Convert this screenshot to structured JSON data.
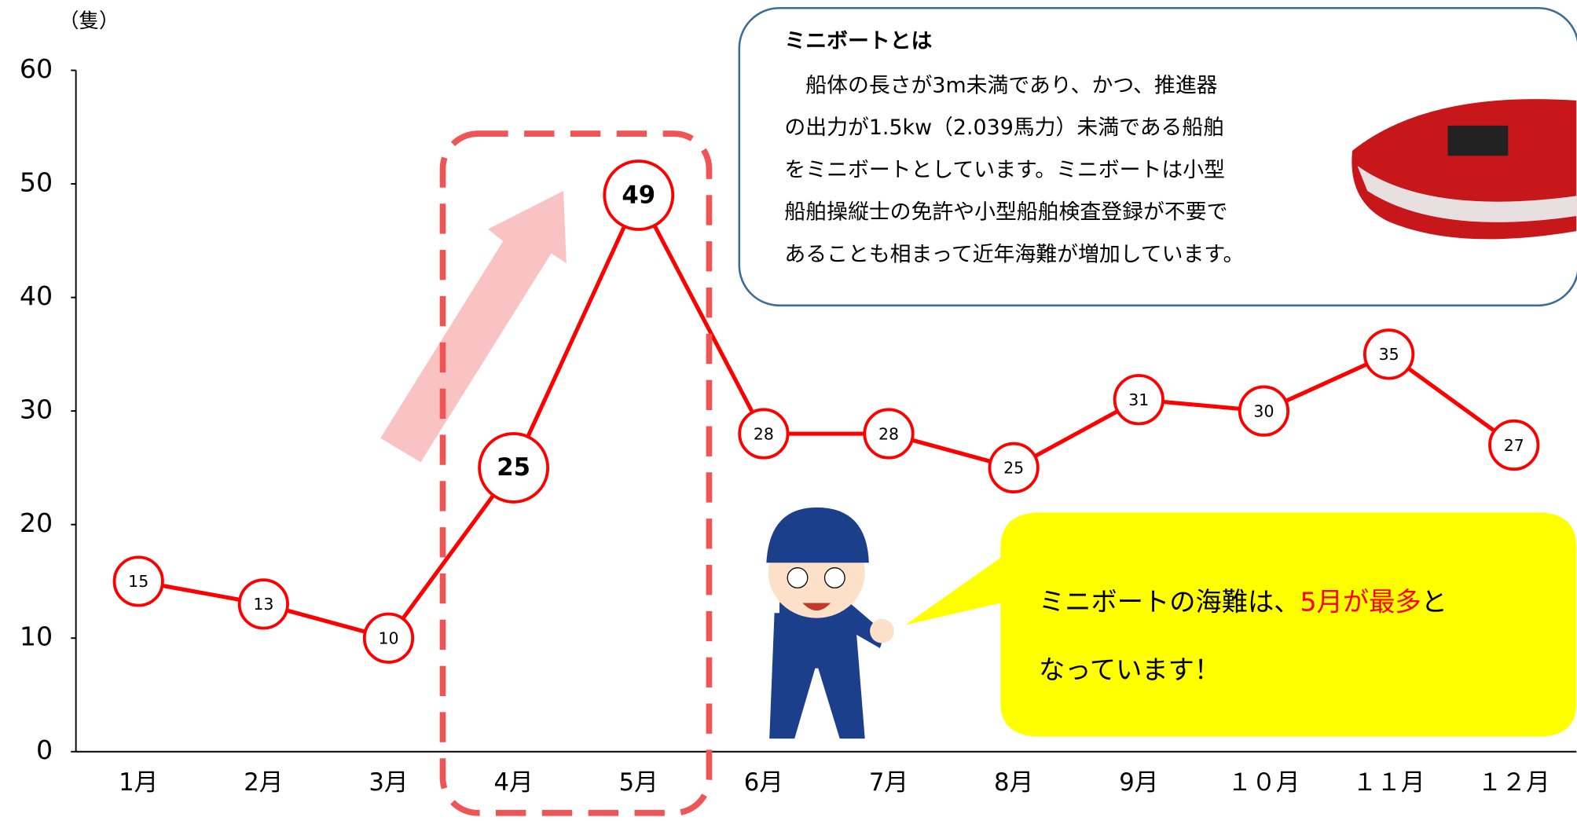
{
  "chart_data": {
    "type": "line",
    "y_axis_label": "（隻）",
    "categories": [
      "1月",
      "2月",
      "3月",
      "4月",
      "5月",
      "6月",
      "7月",
      "8月",
      "9月",
      "１０月",
      "１１月",
      "１２月"
    ],
    "series": [
      {
        "color": "#ff0000",
        "values": [
          15,
          13,
          10,
          25,
          49,
          28,
          28,
          25,
          31,
          30,
          35,
          27
        ]
      }
    ],
    "ylim": [
      0,
      60
    ],
    "yticks": [
      0,
      10,
      20,
      30,
      40,
      50,
      60
    ],
    "info_box": {
      "title": "ミニボートとは",
      "lines": [
        "　船体の長さが3m未満であり、かつ、推進器",
        "の出力が1.5kw（2.039馬力）未満である船舶",
        "をミニボートとしています。ミニボートは小型",
        "船舶操縦士の免許や小型船舶検査登録が不要で",
        "あることも相まって近年海難が増加しています。"
      ]
    },
    "callout": {
      "before": "ミニボートの海難は、",
      "highlight": "5月が最多",
      "after": "と",
      "line2": "なっています！"
    }
  }
}
